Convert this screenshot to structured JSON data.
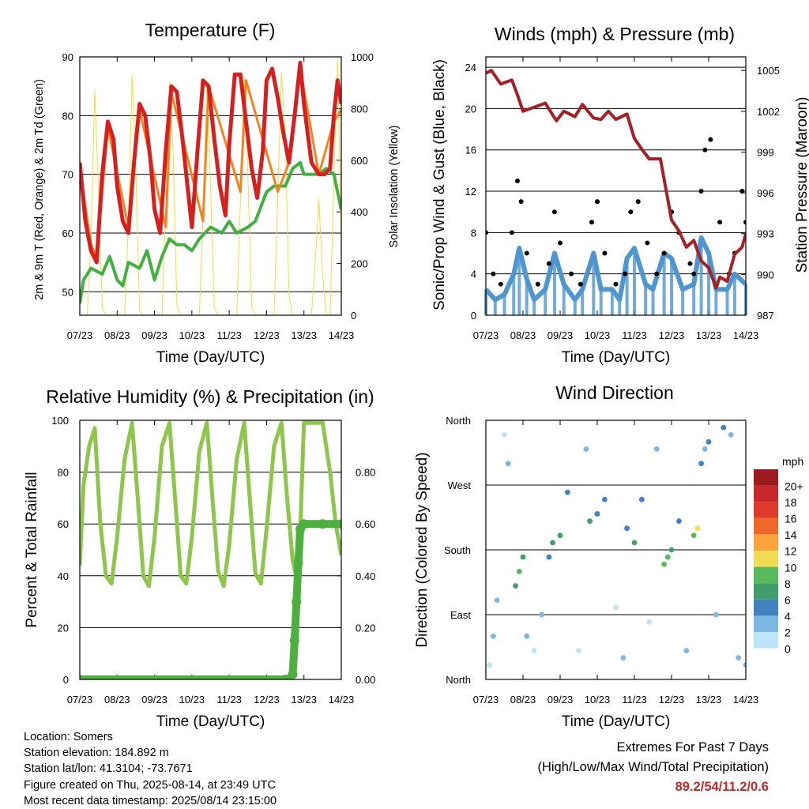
{
  "x_ticks": [
    "07/23",
    "08/23",
    "09/23",
    "10/23",
    "11/23",
    "12/23",
    "13/23",
    "14/23"
  ],
  "chart_data": [
    {
      "type": "line",
      "title": "Temperature (F)",
      "xlabel": "Time (Day/UTC)",
      "ylabel": "2m & 9m T (Red, Orange) & 2m Td (Green)",
      "ylabel_right": "Solar Insolation (Yellow)",
      "ylim": [
        46,
        90
      ],
      "y_ticks": [
        50,
        60,
        70,
        80,
        90
      ],
      "ylim_right": [
        0,
        1000
      ],
      "y_ticks_right": [
        0,
        200,
        400,
        600,
        800,
        1000
      ],
      "xlim": [
        0,
        7
      ],
      "series": [
        {
          "color": "#d62020",
          "axis": "left",
          "x": [
            0,
            0.15,
            0.3,
            0.45,
            0.6,
            0.75,
            0.9,
            1.0,
            1.15,
            1.3,
            1.45,
            1.6,
            1.75,
            1.9,
            2.0,
            2.15,
            2.3,
            2.45,
            2.6,
            2.75,
            2.9,
            3.0,
            3.15,
            3.3,
            3.45,
            3.6,
            3.75,
            3.9,
            4.0,
            4.15,
            4.3,
            4.45,
            4.6,
            4.75,
            4.9,
            5.0,
            5.15,
            5.3,
            5.45,
            5.6,
            5.75,
            5.9,
            6.0,
            6.2,
            6.4,
            6.55,
            6.7,
            6.8,
            6.9,
            7.0
          ],
          "y": [
            72,
            62,
            57,
            55,
            70,
            79,
            76,
            68,
            62,
            60,
            72,
            82,
            80,
            72,
            64,
            60,
            74,
            85,
            84,
            76,
            67,
            61,
            74,
            86,
            85,
            76,
            68,
            63,
            75,
            87,
            87,
            79,
            71,
            66,
            74,
            86,
            88,
            83,
            77,
            72,
            80,
            89,
            82,
            72,
            70,
            70,
            71,
            80,
            86,
            82
          ]
        },
        {
          "color": "#f4831f",
          "axis": "left",
          "x": [
            0,
            0.3,
            0.45,
            0.75,
            1.3,
            1.6,
            2.3,
            2.45,
            3.3,
            3.45,
            4.3,
            4.45,
            5.3,
            5.6,
            5.9,
            6.4,
            6.8,
            7.0
          ],
          "y": [
            71,
            58,
            56,
            78,
            61,
            81,
            61,
            84,
            62,
            85,
            67,
            86,
            67,
            72,
            88,
            70,
            79,
            81
          ]
        },
        {
          "color": "#42b040",
          "axis": "left",
          "x": [
            0,
            0.1,
            0.3,
            0.6,
            0.8,
            1.0,
            1.15,
            1.3,
            1.6,
            1.8,
            2.0,
            2.2,
            2.4,
            2.6,
            2.8,
            3.0,
            3.2,
            3.5,
            3.8,
            4.0,
            4.2,
            4.5,
            4.7,
            5.0,
            5.2,
            5.5,
            5.7,
            5.9,
            6.0,
            6.2,
            6.4,
            6.6,
            6.8,
            7.0
          ],
          "y": [
            48,
            52,
            54,
            53,
            56,
            52,
            51,
            55,
            54,
            57,
            52,
            56,
            59,
            58,
            58,
            57,
            59,
            61,
            60,
            62,
            60,
            61,
            62,
            67,
            68,
            68,
            71,
            72,
            70,
            70,
            70,
            71,
            70,
            64
          ]
        },
        {
          "color": "#f5da3c",
          "axis": "right",
          "x": [
            0,
            0.1,
            0.2,
            0.3,
            0.4,
            0.5,
            0.6,
            0.7,
            0.8,
            0.9,
            1.0,
            1.1,
            1.2,
            1.3,
            1.4,
            1.5,
            1.6,
            1.7,
            1.8,
            1.9,
            2.0,
            2.1,
            2.2,
            2.3,
            2.4,
            2.5,
            2.6,
            2.7,
            2.8,
            2.9,
            3.0,
            3.1,
            3.2,
            3.3,
            3.4,
            3.5,
            3.6,
            3.7,
            3.8,
            3.9,
            4.0,
            4.1,
            4.2,
            4.3,
            4.4,
            4.5,
            4.6,
            4.7,
            4.8,
            4.9,
            5.0,
            5.1,
            5.2,
            5.3,
            5.4,
            5.5,
            5.6,
            5.7,
            5.8,
            5.9,
            6.0,
            6.1,
            6.2,
            6.3,
            6.4,
            6.5,
            6.6,
            6.7,
            6.8,
            6.9,
            7.0
          ],
          "y": [
            0,
            0,
            0,
            300,
            870,
            480,
            30,
            0,
            0,
            0,
            0,
            0,
            0,
            350,
            930,
            560,
            20,
            0,
            0,
            0,
            0,
            0,
            0,
            420,
            900,
            620,
            40,
            0,
            0,
            0,
            0,
            0,
            0,
            380,
            890,
            500,
            30,
            0,
            0,
            0,
            0,
            0,
            0,
            440,
            920,
            540,
            30,
            0,
            0,
            0,
            0,
            0,
            0,
            460,
            940,
            700,
            80,
            0,
            0,
            0,
            0,
            0,
            0,
            200,
            450,
            150,
            0,
            0,
            520,
            990,
            300
          ]
        }
      ]
    },
    {
      "type": "scatter",
      "title": "Winds (mph) & Pressure (mb)",
      "xlabel": "Time (Day/UTC)",
      "ylabel": "Sonic/Prop Wind & Gust (Blue, Black)",
      "ylabel_right": "Station Pressure (Maroon)",
      "ylim": [
        0,
        25
      ],
      "y_ticks": [
        0,
        4,
        8,
        12,
        16,
        20,
        24
      ],
      "ylim_right": [
        987,
        1006
      ],
      "y_ticks_right": [
        987,
        990,
        993,
        996,
        999,
        1002,
        1005
      ],
      "xlim": [
        0,
        7
      ],
      "wind_blue": {
        "color": "#4f96d1",
        "x": [
          0,
          0.25,
          0.5,
          0.75,
          0.9,
          1.1,
          1.3,
          1.6,
          1.85,
          2.1,
          2.4,
          2.6,
          2.9,
          3.1,
          3.4,
          3.6,
          3.8,
          4.0,
          4.3,
          4.5,
          4.8,
          5.0,
          5.3,
          5.6,
          5.8,
          6.0,
          6.2,
          6.5,
          6.7,
          7.0
        ],
        "y": [
          2.5,
          1.5,
          2.0,
          4.0,
          6.5,
          3.5,
          1.5,
          2.5,
          6.0,
          3.0,
          1.5,
          2.5,
          6.0,
          2.5,
          2.5,
          1.5,
          5.5,
          6.5,
          3.0,
          2.5,
          6.0,
          5.5,
          2.5,
          3.0,
          7.5,
          6.0,
          2.5,
          2.5,
          4.0,
          3.0
        ]
      },
      "gust_black": {
        "color": "#000000",
        "x": [
          0,
          0.2,
          0.4,
          0.7,
          0.85,
          0.95,
          1.1,
          1.4,
          1.7,
          1.85,
          2.0,
          2.3,
          2.55,
          2.85,
          3.0,
          3.2,
          3.5,
          3.75,
          3.9,
          4.1,
          4.35,
          4.6,
          4.8,
          5.0,
          5.2,
          5.5,
          5.6,
          5.8,
          5.9,
          6.05,
          6.3,
          6.55,
          6.7,
          6.9,
          7.0
        ],
        "y": [
          8,
          4,
          3,
          8,
          13,
          11,
          6,
          3,
          5,
          10,
          7,
          4,
          3,
          9,
          11,
          6,
          3,
          4,
          10,
          11,
          7,
          4,
          6,
          10,
          8,
          5,
          4,
          12,
          16,
          17,
          9,
          4,
          6,
          12,
          9
        ]
      },
      "pressure": {
        "color": "#a52024",
        "x": [
          0,
          0.15,
          0.4,
          0.7,
          0.85,
          1.0,
          1.3,
          1.6,
          1.9,
          2.1,
          2.4,
          2.6,
          2.9,
          3.1,
          3.3,
          3.5,
          3.8,
          4.0,
          4.2,
          4.4,
          4.7,
          4.9,
          5.0,
          5.2,
          5.4,
          5.6,
          5.8,
          6.0,
          6.2,
          6.3,
          6.5,
          6.7,
          6.9,
          7.0
        ],
        "y": [
          1004.8,
          1005.0,
          1004.0,
          1004.3,
          1003.2,
          1002.0,
          1002.3,
          1002.6,
          1001.3,
          1002.0,
          1001.6,
          1002.5,
          1001.5,
          1001.4,
          1002.0,
          1001.4,
          1001.8,
          1000.0,
          999.2,
          998.5,
          998.5,
          995.5,
          994.0,
          993.2,
          992.0,
          992.5,
          991.0,
          990.5,
          989.0,
          989.8,
          989.5,
          991.5,
          992.0,
          993.0
        ]
      }
    },
    {
      "type": "line",
      "title": "Relative Humidity (%) & Precipitation (in)",
      "xlabel": "Time (Day/UTC)",
      "ylabel": "Percent & Total Rainfall",
      "ylim": [
        0,
        100
      ],
      "y_ticks": [
        0,
        20,
        40,
        60,
        80,
        100
      ],
      "ylim_right": [
        0,
        1.0
      ],
      "y_ticks_right": [
        "0.00",
        "0.20",
        "0.40",
        "0.60",
        "0.80"
      ],
      "xlim": [
        0,
        7
      ],
      "rh": {
        "color": "#8dc64a",
        "x": [
          0,
          0.1,
          0.25,
          0.4,
          0.55,
          0.7,
          0.85,
          1.0,
          1.2,
          1.4,
          1.55,
          1.7,
          1.85,
          2.0,
          2.2,
          2.4,
          2.55,
          2.7,
          2.85,
          3.0,
          3.2,
          3.4,
          3.55,
          3.7,
          3.85,
          4.0,
          4.2,
          4.4,
          4.55,
          4.7,
          4.85,
          5.0,
          5.2,
          5.4,
          5.55,
          5.7,
          5.85,
          6.0,
          6.2,
          6.4,
          6.5,
          6.7,
          6.85,
          7.0
        ],
        "y": [
          44,
          75,
          90,
          97,
          60,
          40,
          37,
          55,
          85,
          99,
          70,
          40,
          36,
          55,
          90,
          99,
          70,
          40,
          37,
          55,
          88,
          99,
          70,
          42,
          36,
          52,
          85,
          99,
          70,
          41,
          37,
          58,
          90,
          99,
          70,
          46,
          36,
          99,
          99,
          99,
          99,
          80,
          60,
          48
        ]
      },
      "precip": {
        "color": "#4caf3e",
        "x": [
          0,
          5.5,
          5.6,
          5.7,
          5.75,
          5.8,
          5.85,
          5.9,
          6.0,
          6.5,
          7.0
        ],
        "y": [
          0.0,
          0.0,
          0.0,
          0.02,
          0.15,
          0.3,
          0.45,
          0.58,
          0.6,
          0.6,
          0.6
        ]
      }
    },
    {
      "type": "scatter",
      "title": "Wind Direction",
      "xlabel": "Time (Day/UTC)",
      "ylabel": "Direction (Colored By Speed)",
      "y_ticks": [
        "North",
        "East",
        "South",
        "West",
        "North"
      ],
      "ylim": [
        0,
        360
      ],
      "xlim": [
        0,
        7
      ],
      "legend_title": "mph",
      "legend_labels": [
        "20+",
        "18",
        "16",
        "14",
        "12",
        "10",
        "8",
        "6",
        "4",
        "2",
        "0"
      ],
      "legend_colors": [
        "#9a1c1f",
        "#c8282a",
        "#e03a2c",
        "#f0672a",
        "#f9a43b",
        "#f0dc52",
        "#59b95d",
        "#3f9e6a",
        "#4181c0",
        "#7cb7e2",
        "#bde4f7"
      ],
      "points": {
        "x": [
          0.1,
          0.2,
          0.3,
          0.5,
          0.6,
          0.8,
          0.9,
          1.0,
          1.1,
          1.3,
          1.5,
          1.7,
          1.8,
          2.0,
          2.2,
          2.5,
          2.7,
          2.8,
          3.0,
          3.2,
          3.5,
          3.7,
          3.8,
          4.0,
          4.2,
          4.4,
          4.6,
          4.8,
          4.9,
          5.0,
          5.2,
          5.4,
          5.6,
          5.7,
          5.8,
          5.9,
          6.0,
          6.2,
          6.4,
          6.6,
          6.8,
          7.0
        ],
        "y": [
          20,
          60,
          110,
          340,
          300,
          130,
          150,
          170,
          60,
          40,
          90,
          170,
          190,
          200,
          260,
          40,
          320,
          220,
          230,
          250,
          100,
          30,
          210,
          190,
          250,
          80,
          320,
          160,
          170,
          180,
          220,
          40,
          200,
          210,
          300,
          320,
          330,
          90,
          350,
          340,
          30,
          20
        ],
        "speed": [
          1,
          2,
          3,
          1,
          2,
          6,
          8,
          6,
          2,
          1,
          3,
          5,
          7,
          6,
          4,
          1,
          2,
          6,
          5,
          4,
          1,
          2,
          5,
          7,
          4,
          1,
          3,
          8,
          9,
          7,
          4,
          2,
          8,
          10,
          4,
          3,
          4,
          2,
          4,
          3,
          2,
          3
        ]
      }
    }
  ],
  "footer": {
    "location": "Location: Somers",
    "elevation": "Station elevation: 184.892 m",
    "latlon": "Station lat/lon: 41.3104; -73.7671",
    "created": "Figure created on Thu, 2025-08-14, at 23:49 UTC",
    "recent": "Most recent data timestamp: 2025/08/14 23:15:00",
    "extremes_title": "Extremes For Past 7 Days",
    "extremes_sub": "(High/Low/Max Wind/Total Precipitation)",
    "extremes_value": "89.2/54/11.2/0.6"
  }
}
